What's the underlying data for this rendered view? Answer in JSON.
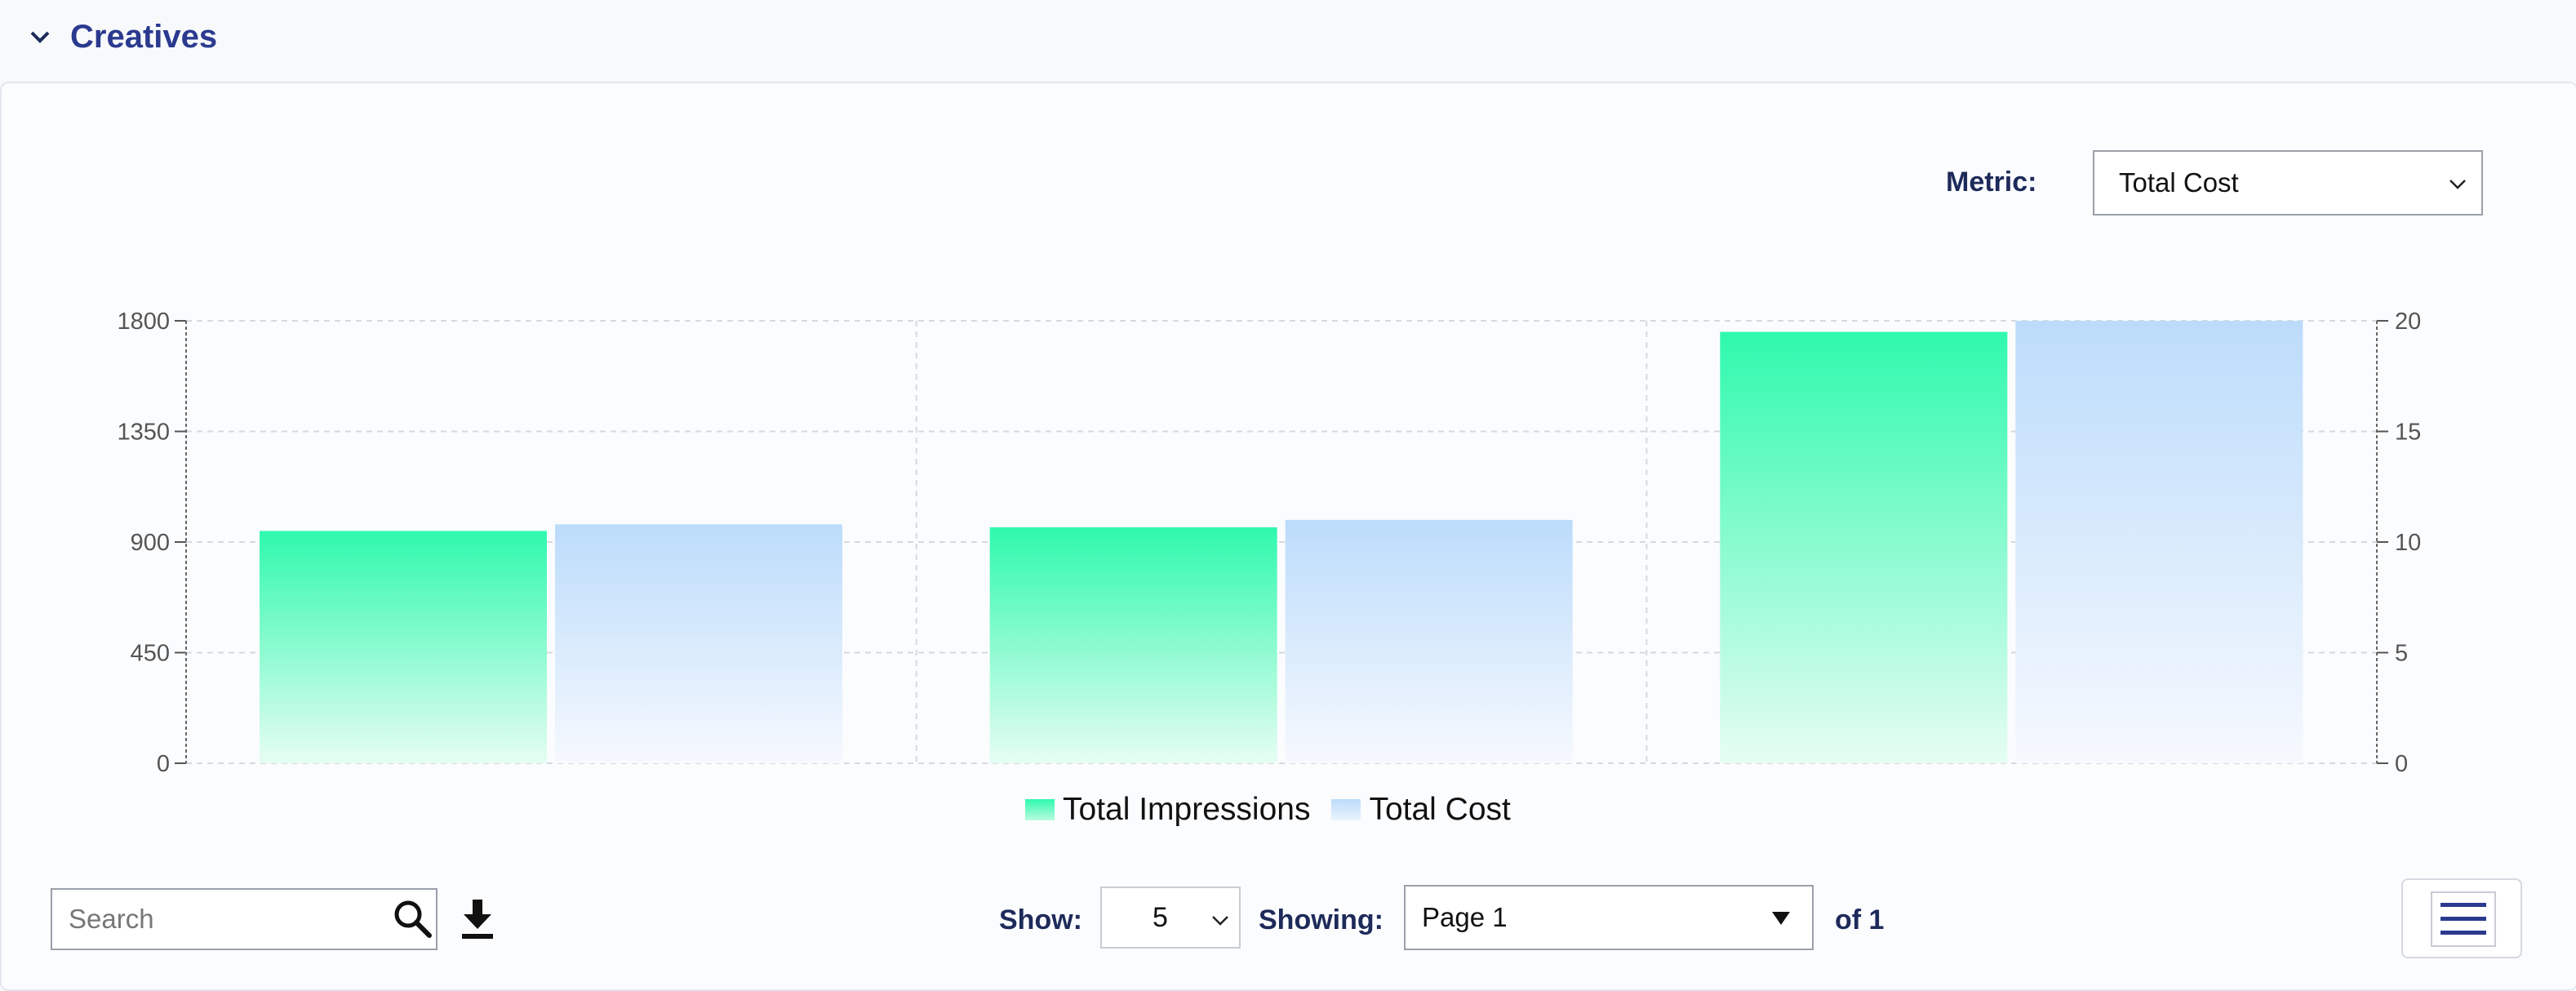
{
  "section": {
    "title": "Creatives",
    "toggle_icon": "chevron-down-icon"
  },
  "metric": {
    "label": "Metric:",
    "selected": "Total Cost"
  },
  "legend": {
    "impressions_label": "Total Impressions",
    "cost_label": "Total Cost"
  },
  "colors": {
    "impressions_top": "#2ff9ad",
    "impressions_bottom": "#e6fdf3",
    "cost_top": "#bcdcfb",
    "cost_bottom": "#f6f9fe",
    "accent": "#2b3a8f"
  },
  "chart_data": {
    "type": "bar",
    "categories": [
      "",
      "",
      ""
    ],
    "series": [
      {
        "name": "Total Impressions",
        "values": [
          945,
          960,
          1755
        ],
        "axis": "left"
      },
      {
        "name": "Total Cost",
        "values": [
          10.8,
          11.0,
          20.0
        ],
        "axis": "right"
      }
    ],
    "y_left": {
      "range": [
        0,
        1800
      ],
      "ticks": [
        "0",
        "450",
        "900",
        "1350",
        "1800"
      ]
    },
    "y_right": {
      "range": [
        0,
        20
      ],
      "ticks": [
        "0",
        "5",
        "10",
        "15",
        "20"
      ]
    },
    "grid": true,
    "legend_position": "bottom-center"
  },
  "toolbar": {
    "search_placeholder": "Search",
    "search_value": "",
    "show_label": "Show:",
    "show_value": "5",
    "showing_label": "Showing:",
    "page_value": "Page 1",
    "of_label": "of 1",
    "icons": [
      "search-icon",
      "download-icon",
      "hamburger-menu-icon",
      "chevron-down-icon"
    ]
  }
}
